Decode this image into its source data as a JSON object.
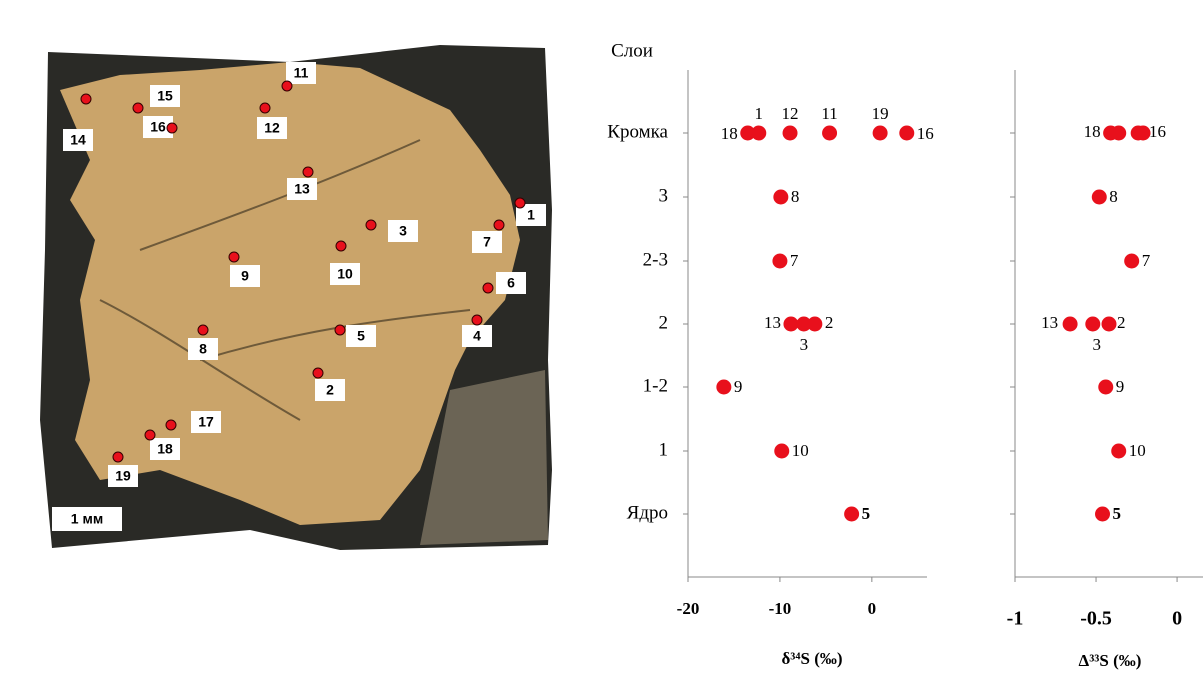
{
  "photo": {
    "point_labels": [
      "1",
      "2",
      "3",
      "4",
      "5",
      "6",
      "7",
      "8",
      "9",
      "10",
      "11",
      "12",
      "13",
      "14",
      "15",
      "16",
      "17",
      "18",
      "19"
    ],
    "scale_bar": "1 мм"
  },
  "chart_data": [
    {
      "type": "scatter",
      "y_title": "Слои",
      "categories": [
        "Кромка",
        "3",
        "2-3",
        "2",
        "1-2",
        "1",
        "Ядро"
      ],
      "x_title": "δ³⁴S (‰)",
      "xlim": [
        -20,
        6
      ],
      "xticks": [
        -20,
        -10,
        0
      ],
      "color": "#e8101c",
      "points": [
        [
          -13.5,
          -12.3,
          -8.9,
          -4.6,
          0.9,
          3.8
        ],
        [
          -9.9
        ],
        [
          -10
        ],
        [
          -8.8,
          -7.4,
          -6.2
        ],
        [
          -16.1
        ],
        [
          -9.8
        ],
        [
          -2.2
        ]
      ],
      "point_labels": [
        [
          "18",
          "1",
          "12",
          "11",
          "19",
          "16"
        ],
        [
          "8"
        ],
        [
          "7"
        ],
        [
          "13",
          "3",
          "2"
        ],
        [
          "9"
        ],
        [
          "10"
        ],
        [
          "5"
        ]
      ]
    },
    {
      "type": "scatter",
      "x_title": "Δ³³S (‰)",
      "xlim": [
        -1,
        0.16
      ],
      "xticks": [
        -1,
        -0.5,
        0
      ],
      "color": "#e8101c",
      "points": [
        [
          -0.41,
          -0.36,
          -0.24,
          -0.21
        ],
        [
          -0.48
        ],
        [
          -0.28
        ],
        [
          -0.66,
          -0.52,
          -0.42
        ],
        [
          -0.44
        ],
        [
          -0.36
        ],
        [
          -0.46
        ]
      ],
      "point_labels": [
        [
          "18",
          null,
          null,
          "16"
        ],
        [
          "8"
        ],
        [
          "7"
        ],
        [
          "13",
          "3",
          "2"
        ],
        [
          "9"
        ],
        [
          "10"
        ],
        [
          "5"
        ]
      ]
    }
  ]
}
